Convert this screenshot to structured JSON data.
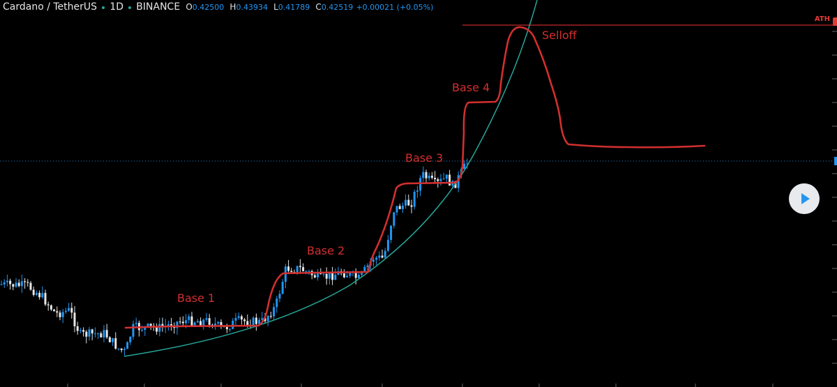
{
  "header": {
    "symbol": "Cardano / TetherUS",
    "interval": "1D",
    "exchange": "BINANCE",
    "open_key": "O",
    "open": "0.42500",
    "high_key": "H",
    "high": "0.43934",
    "low_key": "L",
    "low": "0.41789",
    "close_key": "C",
    "close": "0.42519",
    "change": "+0.00021 (+0.05%)"
  },
  "colors": {
    "background": "#000000",
    "up_candle": "#2196f3",
    "down_candle": "#e6e6e6",
    "annotation": "#d32f2f",
    "curve": "#26a69a",
    "ath_line": "#c62828",
    "price_line": "#2196f3"
  },
  "chart_data": {
    "type": "candlestick",
    "title": "",
    "series_price_scale": "hidden",
    "annotations": [
      {
        "type": "label",
        "text": "Base 1"
      },
      {
        "type": "label",
        "text": "Base 2"
      },
      {
        "type": "label",
        "text": "Base 3"
      },
      {
        "type": "label",
        "text": "Base 4"
      },
      {
        "type": "label",
        "text": "Selloff"
      },
      {
        "type": "horizontal-line",
        "text": "ATH"
      },
      {
        "type": "parabolic-curve"
      },
      {
        "type": "freehand-path",
        "description": "base-and-breakout sketch ending in selloff and flat line"
      }
    ],
    "current_price_line": "dotted",
    "grid": false,
    "legend": "none"
  },
  "controls": {
    "play_icon": "play-icon"
  }
}
